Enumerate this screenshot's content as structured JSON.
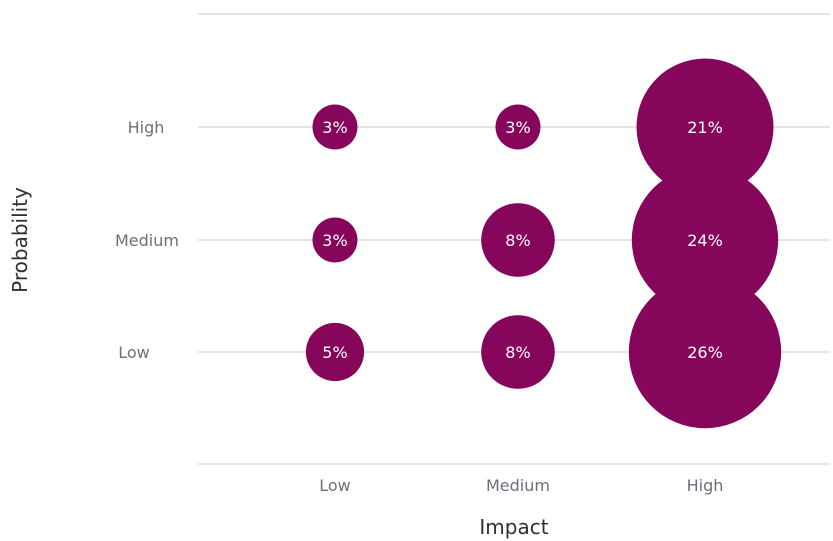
{
  "chart_data": {
    "type": "scatter",
    "xlabel": "Impact",
    "ylabel": "Probability",
    "x_categories": [
      "Low",
      "Medium",
      "High"
    ],
    "y_categories": [
      "High",
      "Medium",
      "Low"
    ],
    "grid": true,
    "colors": {
      "bubble": "#85065a",
      "grid": "#c8c8cc",
      "tick": "#6f6f7a",
      "title": "#2f2f36"
    },
    "points": [
      {
        "x": "Low",
        "y": "High",
        "value": 3,
        "label": "3%"
      },
      {
        "x": "Medium",
        "y": "High",
        "value": 3,
        "label": "3%"
      },
      {
        "x": "High",
        "y": "High",
        "value": 21,
        "label": "21%"
      },
      {
        "x": "Low",
        "y": "Medium",
        "value": 3,
        "label": "3%"
      },
      {
        "x": "Medium",
        "y": "Medium",
        "value": 8,
        "label": "8%"
      },
      {
        "x": "High",
        "y": "Medium",
        "value": 24,
        "label": "24%"
      },
      {
        "x": "Low",
        "y": "Low",
        "value": 5,
        "label": "5%"
      },
      {
        "x": "Medium",
        "y": "Low",
        "value": 8,
        "label": "8%"
      },
      {
        "x": "High",
        "y": "Low",
        "value": 26,
        "label": "26%"
      }
    ]
  }
}
